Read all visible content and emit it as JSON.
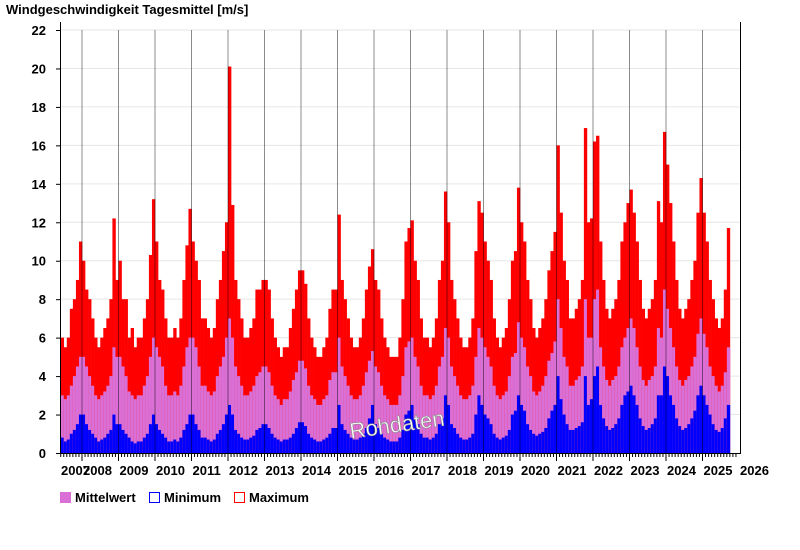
{
  "chart_data": {
    "type": "bar",
    "title": "Windgeschwindigkeit Tagesmittel [m/s]",
    "xlabel": "",
    "ylabel": "",
    "ylim": [
      0,
      22
    ],
    "yticks": [
      0,
      2,
      4,
      6,
      8,
      10,
      12,
      14,
      16,
      18,
      20,
      22
    ],
    "xticks": [
      "2007",
      "2008",
      "2009",
      "2010",
      "2011",
      "2012",
      "2013",
      "2014",
      "2015",
      "2016",
      "2017",
      "2018",
      "2019",
      "2020",
      "2021",
      "2022",
      "2023",
      "2024",
      "2025",
      "2026"
    ],
    "grid": true,
    "legend_position": "bottom-left",
    "watermark": "Rohdaten",
    "resolution": "monthly (approximated from daily bars)",
    "start_month": "2007-06",
    "series": [
      {
        "name": "Maximum",
        "color": "#ff0000",
        "values": [
          6,
          5.5,
          6,
          7.5,
          8,
          9,
          11,
          10,
          8.5,
          8,
          7,
          6,
          5.5,
          6,
          6.5,
          7,
          8,
          12.2,
          9,
          10,
          8,
          8,
          6,
          6.5,
          5.5,
          6,
          6,
          7,
          8,
          10.3,
          13.2,
          11,
          9,
          8.5,
          7,
          6,
          6,
          6.5,
          6,
          7,
          9,
          10.8,
          12.7,
          11,
          10,
          9,
          7,
          7,
          6.5,
          6,
          6.5,
          8,
          9,
          10.5,
          12,
          20.1,
          12.9,
          9,
          8,
          7,
          6,
          6,
          6.5,
          7,
          8.5,
          8.5,
          9,
          9,
          8.5,
          7,
          6,
          5.5,
          5,
          5.5,
          5.5,
          6.5,
          7.5,
          8.5,
          9.5,
          9.5,
          8.8,
          7,
          6,
          5.5,
          5,
          5,
          5.5,
          6,
          7.5,
          8.5,
          8.5,
          12.4,
          9,
          8,
          7,
          6,
          5.5,
          5.5,
          6,
          7,
          8.5,
          9.7,
          10.6,
          9,
          8.5,
          7,
          6,
          5.5,
          5,
          5,
          5,
          6,
          8,
          11,
          11.7,
          12.1,
          10,
          9,
          7,
          6,
          6,
          5.5,
          6,
          7,
          9,
          10,
          13.6,
          12,
          9,
          8,
          7,
          6,
          5.5,
          5.5,
          6,
          7,
          10.5,
          13.1,
          12.5,
          11,
          10,
          9,
          7,
          6,
          5.5,
          6,
          6.5,
          8,
          10,
          10.5,
          13.8,
          12,
          11,
          9,
          8,
          6.5,
          6,
          6.5,
          7,
          8,
          9.5,
          10.5,
          11.5,
          16,
          12.5,
          10,
          9,
          7,
          7,
          7.5,
          8,
          9,
          16.9,
          12,
          12.2,
          16.2,
          16.5,
          11,
          9,
          7.5,
          7,
          7.5,
          8,
          9,
          11,
          12,
          13,
          13.7,
          12.5,
          11,
          9,
          7.5,
          7,
          7.5,
          8,
          9,
          13.1,
          12,
          16.7,
          15,
          13,
          11,
          9,
          7.5,
          7,
          7.5,
          8,
          9,
          10,
          12.5,
          14.3,
          12.5,
          11,
          9,
          8,
          7,
          6.5,
          7,
          8.5,
          11.7
        ]
      },
      {
        "name": "Mittelwert",
        "color": "#da70d6",
        "values": [
          3,
          2.8,
          3,
          3.5,
          4,
          4.5,
          5,
          5,
          4.5,
          4,
          3.5,
          3,
          2.8,
          3,
          3.2,
          3.5,
          4,
          5.5,
          5,
          5,
          4.5,
          4,
          3.2,
          3,
          2.8,
          3,
          3,
          3.5,
          4,
          5,
          6,
          5.5,
          5,
          4.5,
          3.5,
          3,
          3,
          3.2,
          3,
          3.5,
          4.5,
          5.5,
          6,
          6,
          5.5,
          4.5,
          3.5,
          3.5,
          3.2,
          3,
          3.2,
          4,
          4.5,
          5,
          6,
          7,
          6,
          4.5,
          4,
          3.5,
          3,
          3,
          3.2,
          3.5,
          4,
          4.2,
          4.5,
          4.5,
          4.2,
          3.5,
          3,
          2.8,
          2.5,
          2.8,
          2.8,
          3.2,
          3.8,
          4.2,
          4.8,
          4.8,
          4.4,
          3.5,
          3,
          2.8,
          2.5,
          2.5,
          2.8,
          3,
          3.8,
          4.2,
          4.2,
          6,
          4.5,
          4,
          3.5,
          3,
          2.8,
          2.8,
          3,
          3.5,
          4.2,
          4.8,
          5.3,
          4.5,
          4.2,
          3.5,
          3,
          2.8,
          2.5,
          2.5,
          2.5,
          3,
          4,
          5.5,
          5.8,
          6,
          5,
          4.5,
          3.5,
          3,
          3,
          2.8,
          3,
          3.5,
          4.5,
          5,
          6.5,
          6,
          4.5,
          4,
          3.5,
          3,
          2.8,
          2.8,
          3,
          3.5,
          5,
          6.5,
          6,
          5.5,
          5,
          4.5,
          3.5,
          3,
          2.8,
          3,
          3.2,
          4,
          5,
          5.2,
          6.8,
          6,
          5.5,
          4.5,
          4,
          3.2,
          3,
          3.2,
          3.5,
          4,
          4.8,
          5.2,
          5.8,
          8,
          6.5,
          5,
          4.5,
          3.5,
          3.5,
          3.8,
          4,
          4.5,
          8,
          6,
          6,
          8,
          8.5,
          5.5,
          4.5,
          3.8,
          3.5,
          3.8,
          4,
          4.5,
          5.5,
          6,
          6.5,
          7,
          6.5,
          5.5,
          4.5,
          3.8,
          3.5,
          3.8,
          4,
          4.5,
          6.5,
          6,
          8.5,
          7.5,
          6.5,
          5.5,
          4.5,
          3.8,
          3.5,
          3.8,
          4,
          4.5,
          5,
          6.2,
          7,
          6.2,
          5.5,
          4.5,
          4,
          3.5,
          3.2,
          3.5,
          4.2,
          5.5
        ]
      },
      {
        "name": "Minimum",
        "color": "#0000ff",
        "values": [
          0.8,
          0.6,
          0.7,
          1,
          1.2,
          1.5,
          2,
          2,
          1.5,
          1.2,
          1,
          0.8,
          0.6,
          0.7,
          0.8,
          1,
          1.2,
          2,
          1.5,
          1.5,
          1.2,
          1,
          0.8,
          0.6,
          0.5,
          0.6,
          0.6,
          0.8,
          1,
          1.5,
          2,
          1.5,
          1.2,
          1,
          0.8,
          0.6,
          0.6,
          0.7,
          0.6,
          0.8,
          1.2,
          1.5,
          2,
          2,
          1.5,
          1.2,
          0.8,
          0.8,
          0.7,
          0.6,
          0.7,
          1,
          1.2,
          1.5,
          2,
          2.5,
          2,
          1.2,
          1,
          0.8,
          0.7,
          0.7,
          0.8,
          0.9,
          1.2,
          1.3,
          1.5,
          1.5,
          1.3,
          1,
          0.8,
          0.7,
          0.6,
          0.7,
          0.7,
          0.8,
          1,
          1.3,
          1.6,
          1.6,
          1.4,
          1,
          0.8,
          0.7,
          0.6,
          0.6,
          0.7,
          0.8,
          1,
          1.3,
          1.3,
          2.5,
          1.5,
          1.2,
          1,
          0.8,
          0.7,
          0.7,
          0.8,
          1,
          1.3,
          1.8,
          2.5,
          1.5,
          1.3,
          1,
          0.8,
          0.7,
          0.6,
          0.6,
          0.6,
          0.8,
          1.2,
          2,
          2.2,
          2.5,
          1.8,
          1.5,
          1,
          0.8,
          0.8,
          0.7,
          0.8,
          1,
          1.5,
          1.8,
          3,
          2.5,
          1.5,
          1.3,
          1,
          0.8,
          0.7,
          0.7,
          0.8,
          1,
          2,
          3,
          2.5,
          2,
          1.8,
          1.5,
          1,
          0.8,
          0.7,
          0.8,
          0.9,
          1.2,
          2,
          2.2,
          3,
          2.5,
          2.2,
          1.5,
          1.2,
          1,
          0.9,
          1,
          1.1,
          1.3,
          1.8,
          2.2,
          2.5,
          4,
          2.8,
          2,
          1.5,
          1.2,
          1.2,
          1.3,
          1.4,
          1.6,
          4,
          2.5,
          2.8,
          4,
          4.5,
          2.5,
          1.8,
          1.4,
          1.2,
          1.3,
          1.5,
          1.8,
          2.5,
          3,
          3.2,
          3.5,
          3,
          2.5,
          1.8,
          1.4,
          1.2,
          1.3,
          1.5,
          1.8,
          3,
          3,
          4.5,
          4,
          3,
          2.5,
          1.8,
          1.4,
          1.2,
          1.3,
          1.5,
          1.8,
          2.2,
          3,
          3.5,
          3,
          2.5,
          2,
          1.5,
          1.2,
          1.1,
          1.3,
          1.8,
          2.5
        ]
      }
    ]
  },
  "legend": [
    {
      "label": "Mittelwert",
      "color": "#da70d6",
      "filled": true
    },
    {
      "label": "Minimum",
      "color": "#0000ff",
      "filled": false
    },
    {
      "label": "Maximum",
      "color": "#ff0000",
      "filled": false
    }
  ]
}
